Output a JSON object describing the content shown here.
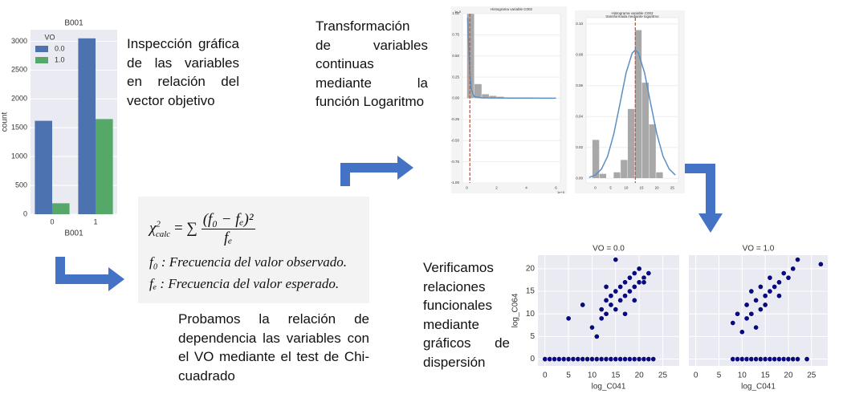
{
  "texts": {
    "inspeccion": "Inspección gráfica de las variables en relación del vector objetivo",
    "transformacion": "Transformación de variables continuas mediante la función Logaritmo",
    "probamos": "Probamos la relación de dependencia las variables con el VO mediante el test de Chi-cuadrado",
    "verificamos": "Verificamos relaciones funcionales mediante gráficos de dispersión"
  },
  "formula": {
    "chi": "χ",
    "chi_sup": "2",
    "chi_sub": "calc",
    "equals_sum": "= ∑",
    "numerator": "(f₀ − fₑ)²",
    "denominator": "fₑ",
    "f0": "f₀ : Frecuencia del valor observado.",
    "fe": "fₑ : Frecuencia del valor esperado."
  },
  "chart_data": [
    {
      "type": "bar",
      "title": "B001",
      "xlabel": "B001",
      "ylabel": "count",
      "legend_title": "VO",
      "categories": [
        "0",
        "1"
      ],
      "series": [
        {
          "name": "0.0",
          "color": "#4c72b0",
          "values": [
            1620,
            3050
          ]
        },
        {
          "name": "1.0",
          "color": "#55a868",
          "values": [
            190,
            1650
          ]
        }
      ],
      "ylim": [
        0,
        3200
      ],
      "yticks": [
        0,
        500,
        1000,
        1500,
        2000,
        2500,
        3000
      ],
      "grid": true
    },
    {
      "type": "histogram",
      "title": "Histograma variable C002",
      "y_offset_label": "1e-5",
      "x_offset_label": "1e+5",
      "bins": [
        0,
        0.5,
        1,
        1.5,
        2,
        2.5,
        3
      ],
      "counts": [
        1.0,
        0.17,
        0.05,
        0.03,
        0.02,
        0.01
      ],
      "color": "#a8a8a8",
      "curve": {
        "x": [
          0.05,
          0.1,
          0.2,
          0.3,
          0.5,
          1,
          2,
          3,
          4,
          5,
          6
        ],
        "y": [
          0.95,
          0.7,
          0.3,
          0.1,
          0.02,
          0.005,
          0.003,
          0.002,
          0.002,
          0.001,
          0.001
        ],
        "color": "#5b8fc1"
      },
      "mean_line": 0.2,
      "mean_color": "#e8501e",
      "xlim": [
        -0.3,
        6.3
      ],
      "xticks": [
        0,
        2,
        4,
        6
      ],
      "ylim": [
        -1,
        1
      ],
      "yticks": [
        {
          "value": 1,
          "label": "1.00"
        },
        0.75,
        {
          "value": 0.5,
          "label": "0.50"
        },
        0.25,
        {
          "value": 0,
          "label": "0.00"
        },
        -0.25,
        {
          "value": -0.5,
          "label": "-0.50"
        },
        -0.75,
        {
          "value": -1,
          "label": "-1.00"
        }
      ]
    },
    {
      "type": "histogram",
      "title": "Histograma variable C002",
      "subtitle": "transformada mediante logaritmo",
      "bins": [
        -1,
        1.3,
        3.6,
        5.9,
        8.2,
        10.5,
        12.8,
        15.1,
        17.4,
        19.7,
        22
      ],
      "counts": [
        0.025,
        0.003,
        0,
        0.004,
        0.012,
        0.045,
        0.096,
        0.062,
        0.035,
        0.004
      ],
      "color": "#a8a8a8",
      "curve": {
        "x": [
          -2,
          0,
          2,
          4,
          6,
          8,
          10,
          12,
          13,
          14,
          16,
          18,
          20,
          22,
          24,
          26
        ],
        "y": [
          0.0006,
          0.0021,
          0.006,
          0.0143,
          0.0287,
          0.0482,
          0.0683,
          0.0812,
          0.083,
          0.0812,
          0.0683,
          0.0482,
          0.0287,
          0.0143,
          0.006,
          0.0021
        ],
        "color": "#5b8fc1"
      },
      "mean_line": 13,
      "mean_color": "#e8501e",
      "xlim": [
        -3,
        27
      ],
      "xticks": [
        0,
        5,
        10,
        15,
        20,
        25
      ],
      "ylim": [
        -0.003,
        0.104
      ],
      "yticks": [
        {
          "value": 0,
          "label": "0.00"
        },
        0.02,
        0.04,
        0.06,
        0.08,
        {
          "value": 0.1,
          "label": "0.10"
        }
      ]
    },
    {
      "type": "scatter",
      "title": "VO = 0.0",
      "xlabel": "log_C041",
      "ylabel": "log_C064",
      "color": "#0a0a80",
      "x": [
        0,
        1,
        2,
        3,
        4,
        5,
        6,
        7,
        8,
        9,
        10,
        11,
        12,
        13,
        14,
        15,
        16,
        17,
        18,
        19,
        20,
        21,
        22,
        23,
        5,
        8,
        10,
        11,
        12,
        12,
        13,
        13,
        14,
        14,
        15,
        15,
        16,
        16,
        17,
        17,
        18,
        18,
        19,
        19,
        20,
        20,
        21,
        21,
        22,
        15,
        17,
        19,
        13
      ],
      "y": [
        0,
        0,
        0,
        0,
        0,
        0,
        0,
        0,
        0,
        0,
        0,
        0,
        0,
        0,
        0,
        0,
        0,
        0,
        0,
        0,
        0,
        0,
        0,
        0,
        9,
        12,
        7,
        5,
        9,
        11,
        10,
        13,
        12,
        14,
        11,
        15,
        13,
        16,
        14,
        17,
        15,
        18,
        16,
        19,
        17,
        20,
        18,
        17,
        19,
        22,
        10,
        13,
        16
      ],
      "xlim": [
        -1.5,
        28.5
      ],
      "xticks": [
        0,
        5,
        10,
        15,
        20,
        25
      ],
      "ylim": [
        -1.5,
        23
      ],
      "yticks": [
        0,
        5,
        10,
        15,
        20
      ],
      "ytick_labels": true
    },
    {
      "type": "scatter",
      "title": "VO = 1.0",
      "xlabel": "log_C041",
      "color": "#0a0a80",
      "x": [
        8,
        9,
        10,
        11,
        12,
        13,
        14,
        15,
        16,
        17,
        18,
        19,
        20,
        21,
        22,
        24,
        8,
        9,
        10,
        11,
        11,
        12,
        13,
        13,
        14,
        15,
        15,
        16,
        17,
        18,
        18,
        19,
        20,
        21,
        22,
        27,
        14,
        16,
        12
      ],
      "y": [
        0,
        0,
        0,
        0,
        0,
        0,
        0,
        0,
        0,
        0,
        0,
        0,
        0,
        0,
        0,
        0,
        8,
        10,
        6,
        9,
        12,
        10,
        7,
        13,
        11,
        14,
        12,
        15,
        16,
        17,
        14,
        19,
        18,
        20,
        22,
        21,
        16,
        18,
        15
      ],
      "xlim": [
        -1.5,
        28.5
      ],
      "xticks": [
        0,
        5,
        10,
        15,
        20,
        25
      ],
      "ylim": [
        -1.5,
        23
      ],
      "yticks": [
        0,
        5,
        10,
        15,
        20
      ],
      "ytick_labels": false
    }
  ]
}
